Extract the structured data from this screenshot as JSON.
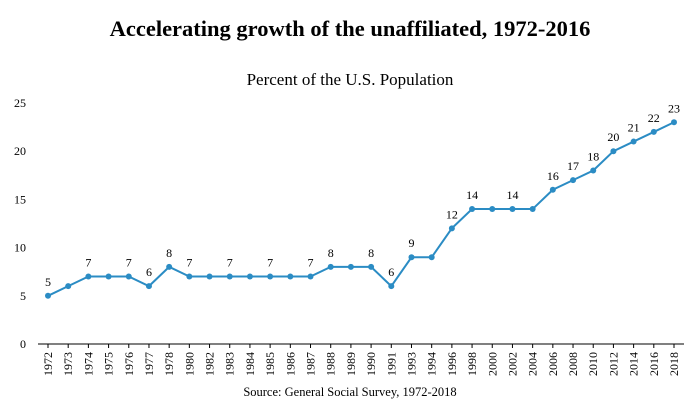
{
  "chart_data": {
    "type": "line",
    "title": "Accelerating growth of the unaffiliated, 1972-2016",
    "subtitle": "Percent of the U.S. Population",
    "source": "Source: General Social Survey, 1972-2018",
    "xlabel": "",
    "ylabel": "",
    "ylim": [
      0,
      25
    ],
    "yticks": [
      0,
      5,
      10,
      15,
      20,
      25
    ],
    "grid": false,
    "legend": "none",
    "color": "#2b8cc4",
    "categories": [
      "1972",
      "1973",
      "1974",
      "1975",
      "1976",
      "1977",
      "1978",
      "1980",
      "1982",
      "1983",
      "1984",
      "1985",
      "1986",
      "1987",
      "1988",
      "1989",
      "1990",
      "1991",
      "1993",
      "1994",
      "1996",
      "1998",
      "2000",
      "2002",
      "2004",
      "2006",
      "2008",
      "2010",
      "2012",
      "2014",
      "2016",
      "2018"
    ],
    "values": [
      5,
      6,
      7,
      7,
      7,
      6,
      8,
      7,
      7,
      7,
      7,
      7,
      7,
      7,
      8,
      8,
      8,
      6,
      9,
      9,
      12,
      14,
      14,
      14,
      14,
      16,
      17,
      18,
      20,
      21,
      22,
      23
    ],
    "labeled_points": [
      {
        "category": "1972",
        "label": "5"
      },
      {
        "category": "1974",
        "label": "7"
      },
      {
        "category": "1976",
        "label": "7"
      },
      {
        "category": "1977",
        "label": "6"
      },
      {
        "category": "1978",
        "label": "8"
      },
      {
        "category": "1980",
        "label": "7"
      },
      {
        "category": "1983",
        "label": "7"
      },
      {
        "category": "1985",
        "label": "7"
      },
      {
        "category": "1987",
        "label": "7"
      },
      {
        "category": "1988",
        "label": "8"
      },
      {
        "category": "1990",
        "label": "8"
      },
      {
        "category": "1991",
        "label": "6"
      },
      {
        "category": "1993",
        "label": "9"
      },
      {
        "category": "1996",
        "label": "12"
      },
      {
        "category": "1998",
        "label": "14"
      },
      {
        "category": "2002",
        "label": "14"
      },
      {
        "category": "2006",
        "label": "16"
      },
      {
        "category": "2008",
        "label": "17"
      },
      {
        "category": "2010",
        "label": "18"
      },
      {
        "category": "2012",
        "label": "20"
      },
      {
        "category": "2014",
        "label": "21"
      },
      {
        "category": "2016",
        "label": "22"
      },
      {
        "category": "2018",
        "label": "23"
      }
    ]
  }
}
